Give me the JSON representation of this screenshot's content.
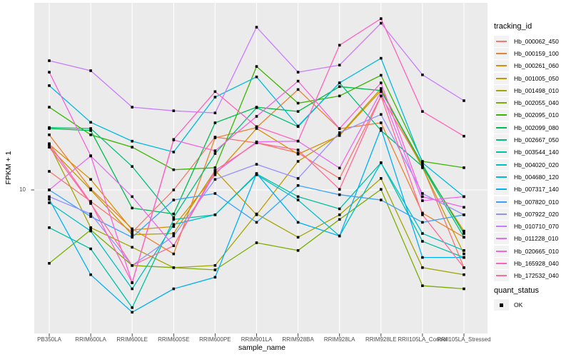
{
  "figure": {
    "background": "#FFFFFF",
    "panel_background": "#EBEBEB",
    "gridline_color": "#FFFFFF",
    "tick_color": "#333333",
    "tick_label_color": "#4D4D4D",
    "point_color": "#000000"
  },
  "legend": {
    "tracking_title": "tracking_id",
    "quant_title": "quant_status",
    "quant_items": [
      {
        "label": "OK",
        "shape": "square",
        "color": "#000000"
      }
    ]
  },
  "chart_data": {
    "type": "line",
    "title": "",
    "xlabel": "sample_name",
    "ylabel": "FPKM + 1",
    "y_scale": "log10",
    "y_tick_values": [
      10
    ],
    "y_tick_labels": [
      "10"
    ],
    "ylim_log10": [
      -0.08,
      2.41
    ],
    "grid": "major",
    "legend_position": "right",
    "point_shape": "square",
    "categories": [
      "PB350LA",
      "RRIM600LA",
      "RRIM600LE",
      "RRIM600SE",
      "RRIM600PE",
      "RRIM901LA",
      "RRIM928BA",
      "RRIM928LA",
      "RRIM928LE",
      "RRII105LA_Control",
      "RRII105LA_Stressed"
    ],
    "series": [
      {
        "name": "Hb_000062_450",
        "color": "#F8766D",
        "values": [
          13.8,
          8.2,
          4.8,
          10.0,
          25.0,
          22.6,
          19.0,
          12.2,
          51.0,
          15.0,
          2.6
        ]
      },
      {
        "name": "Hb_000159_100",
        "color": "#EA8331",
        "values": [
          26.0,
          10.2,
          5.1,
          3.3,
          24.7,
          29.5,
          57.0,
          28.9,
          32.0,
          6.7,
          4.4
        ]
      },
      {
        "name": "Hb_000261_060",
        "color": "#D89000",
        "values": [
          22.0,
          12.0,
          5.0,
          5.3,
          13.0,
          29.0,
          18.6,
          25.7,
          56.0,
          15.0,
          4.9
        ]
      },
      {
        "name": "Hb_001005_050",
        "color": "#C09B00",
        "values": [
          21.0,
          10.0,
          4.6,
          4.7,
          14.0,
          6.5,
          16.4,
          26.0,
          58.0,
          14.7,
          3.3
        ]
      },
      {
        "name": "Hb_001498_010",
        "color": "#A3A500",
        "values": [
          22.0,
          5.2,
          3.7,
          2.6,
          2.7,
          6.6,
          4.4,
          6.5,
          12.2,
          2.6,
          2.3
        ]
      },
      {
        "name": "Hb_002055_040",
        "color": "#7CAE00",
        "values": [
          2.8,
          5.0,
          2.7,
          2.6,
          2.5,
          4.0,
          3.5,
          6.0,
          10.1,
          1.9,
          1.8
        ]
      },
      {
        "name": "Hb_002095_010",
        "color": "#39B600",
        "values": [
          42.0,
          26.0,
          21.0,
          14.2,
          14.7,
          85.0,
          45.0,
          51.0,
          73.0,
          16.4,
          14.7
        ]
      },
      {
        "name": "Hb_002099_080",
        "color": "#00BB4E",
        "values": [
          29.0,
          28.0,
          7.3,
          6.6,
          32.0,
          42.0,
          39.0,
          60.0,
          56.0,
          15.5,
          4.7
        ]
      },
      {
        "name": "Hb_002667_050",
        "color": "#00BF7D",
        "values": [
          29.5,
          29.0,
          15.0,
          6.2,
          18.8,
          41.6,
          30.0,
          64.0,
          28.0,
          15.0,
          4.4
        ]
      },
      {
        "name": "Hb_003544_140",
        "color": "#00C1A3",
        "values": [
          5.2,
          3.6,
          1.3,
          6.0,
          6.5,
          13.2,
          8.9,
          7.2,
          16.0,
          4.1,
          3.1
        ]
      },
      {
        "name": "Hb_004020_020",
        "color": "#00BFC4",
        "values": [
          8.0,
          4.9,
          1.8,
          5.5,
          6.5,
          13.0,
          8.4,
          4.5,
          16.0,
          4.7,
          3.5
        ]
      },
      {
        "name": "Hb_004680_120",
        "color": "#00BAE0",
        "values": [
          61.0,
          32.3,
          23.3,
          19.3,
          50.0,
          71.0,
          30.3,
          64.0,
          98.0,
          16.0,
          8.9
        ]
      },
      {
        "name": "Hb_007317_140",
        "color": "#00B0F6",
        "values": [
          8.5,
          2.3,
          1.2,
          1.8,
          2.2,
          13.3,
          5.7,
          4.5,
          29.0,
          3.1,
          3.1
        ]
      },
      {
        "name": "Hb_007820_010",
        "color": "#35A2FF",
        "values": [
          10.0,
          6.3,
          4.4,
          8.4,
          9.4,
          5.7,
          10.8,
          9.2,
          8.4,
          5.7,
          6.5
        ]
      },
      {
        "name": "Hb_007922_020",
        "color": "#9590FF",
        "values": [
          8.9,
          6.6,
          2.7,
          4.5,
          12.0,
          15.6,
          12.2,
          27.0,
          37.0,
          9.4,
          6.5
        ]
      },
      {
        "name": "Hb_010710_070",
        "color": "#C77CFF",
        "values": [
          94.0,
          79.0,
          42.0,
          39.4,
          38.0,
          168.0,
          77.0,
          87.0,
          180.0,
          73.6,
          47.0
        ]
      },
      {
        "name": "Hb_011228_010",
        "color": "#E76BF3",
        "values": [
          10.0,
          18.0,
          8.9,
          3.8,
          13.5,
          23.0,
          23.3,
          14.6,
          55.0,
          8.3,
          8.9
        ]
      },
      {
        "name": "Hb_020665_010",
        "color": "#FA62DB",
        "values": [
          77.0,
          18.1,
          2.0,
          23.8,
          19.7,
          35.8,
          66.0,
          29.0,
          64.0,
          8.9,
          7.4
        ]
      },
      {
        "name": "Hb_165928_040",
        "color": "#FF62BC",
        "values": [
          22.3,
          8.0,
          2.0,
          24.0,
          55.0,
          30.0,
          23.3,
          123.0,
          195.0,
          39.0,
          25.4
        ]
      },
      {
        "name": "Hb_172532_040",
        "color": "#FF6A98",
        "values": [
          21.0,
          7.9,
          2.7,
          3.8,
          14.0,
          22.6,
          20.0,
          10.1,
          51.0,
          6.5,
          2.6
        ]
      }
    ]
  }
}
